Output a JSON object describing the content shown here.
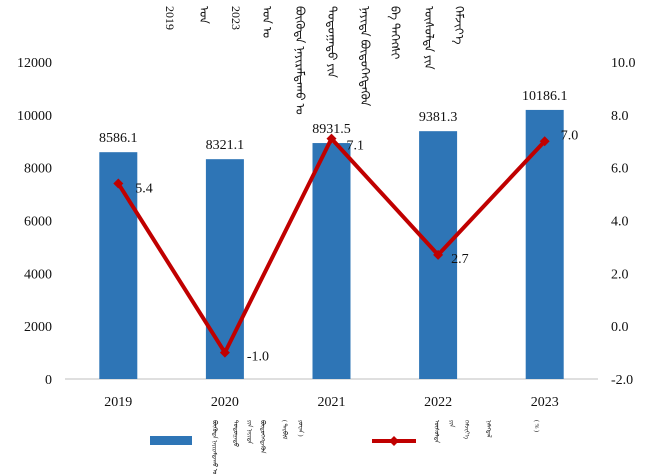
{
  "title_lines": [
    "2019",
    "ᠣᠨ",
    "2023",
    "ᠣᠨ ᠤ",
    "ᠪᠦᠭᠦᠳᠡ ᠨᠠᠶᠢᠷᠠᠮᠳᠠᠬᠤ ᠤ",
    "ᠳᠣᠲᠣᠭᠠᠳᠤ ᠶᠢᠨ",
    "ᠨᠡᠶᠢᠲᠡ ᠪᠦᠲᠦᠭᠡᠭᠳᠡᠬᠦᠨ",
    "ᠪᠠ ᠳᠡᠭᠡᠭᠰᠢ",
    "ᠥᠰᠦᠯᠲᠡ ᠶᠢᠨ",
    "ᠬᠡᠮᠵᠢᠶ᠎ᠡ"
  ],
  "chart_data": {
    "type": "bar+line",
    "categories": [
      "2019",
      "2020",
      "2021",
      "2022",
      "2023"
    ],
    "series": [
      {
        "kind": "bar",
        "axis": "left",
        "color": "#2e75b6",
        "values": [
          8586.1,
          8321.1,
          8931.5,
          9381.3,
          10186.1
        ],
        "labels": [
          "8586.1",
          "8321.1",
          "8931.5",
          "9381.3",
          "10186.1"
        ]
      },
      {
        "kind": "line",
        "axis": "right",
        "color": "#c00000",
        "values": [
          5.4,
          -1.0,
          7.1,
          2.7,
          7.0
        ],
        "labels": [
          "5.4",
          "-1.0",
          "7.1",
          "2.7",
          "7.0"
        ]
      }
    ],
    "left_axis": {
      "min": 0,
      "max": 12000,
      "ticks": [
        "0",
        "2000",
        "4000",
        "6000",
        "8000",
        "10000",
        "12000"
      ]
    },
    "right_axis": {
      "min": -2.0,
      "max": 10.0,
      "ticks": [
        "-2.0",
        "0.0",
        "2.0",
        "4.0",
        "6.0",
        "8.0",
        "10.0"
      ]
    },
    "grid": false,
    "legend": {
      "placement": "bottom",
      "bar_entry": [
        "ᠪᠦᠭᠦᠳᠡ ᠨᠠᠶᠢᠷᠠᠮᠳᠠᠬᠤ ᠤ",
        "ᠳᠣᠲᠣᠭᠠᠳᠤ",
        "ᠶᠢᠨ ᠨᠡᠶᠢᠲᠡ",
        "ᠪᠦᠲᠦᠭᠡᠭᠳᠡᠬᠦᠨ",
        "( ᠲᠡᠷᠪᠢᠮ",
        "ᠶᠤᠸᠠᠨ )"
      ],
      "line_entry": [
        "ᠥᠰᠦᠯᠲᠡ",
        "ᠶᠢᠨ",
        "ᠬᠡᠮᠵᠢᠶ᠎ᠡ",
        "ᠨᠡᠮᠡᠭᠳᠡᠯ",
        "( % )"
      ]
    }
  }
}
